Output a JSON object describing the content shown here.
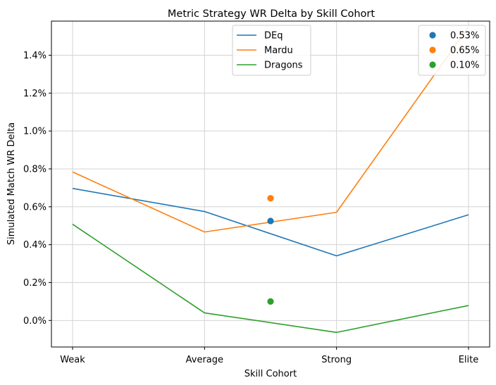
{
  "chart_data": {
    "type": "line",
    "title": "Metric Strategy WR Delta by Skill Cohort",
    "xlabel": "Skill Cohort",
    "ylabel": "Simulated Match WR Delta",
    "categories": [
      "Weak",
      "Average",
      "Strong",
      "Elite"
    ],
    "ylim": [
      -0.14,
      1.58
    ],
    "yticks": [
      0.0,
      0.2,
      0.4,
      0.6,
      0.8,
      1.0,
      1.2,
      1.4
    ],
    "ytick_labels": [
      "0.0%",
      "0.2%",
      "0.4%",
      "0.6%",
      "0.8%",
      "1.0%",
      "1.2%",
      "1.4%"
    ],
    "grid": true,
    "series": [
      {
        "name": "DEq",
        "color": "#1f77b4",
        "values": [
          0.697,
          0.575,
          0.341,
          0.558
        ]
      },
      {
        "name": "Mardu",
        "color": "#ff7f0e",
        "values": [
          0.784,
          0.467,
          0.571,
          1.55
        ]
      },
      {
        "name": "Dragons",
        "color": "#2ca02c",
        "values": [
          0.508,
          0.04,
          -0.063,
          0.079
        ]
      }
    ],
    "points": [
      {
        "label": "0.53%",
        "color": "#1f77b4",
        "x": 1.5,
        "y": 0.525
      },
      {
        "label": "0.65%",
        "color": "#ff7f0e",
        "x": 1.5,
        "y": 0.645
      },
      {
        "label": "0.10%",
        "color": "#2ca02c",
        "x": 1.5,
        "y": 0.1
      }
    ],
    "legend_lines_placement": "upper-center",
    "legend_points_placement": "upper-right"
  }
}
